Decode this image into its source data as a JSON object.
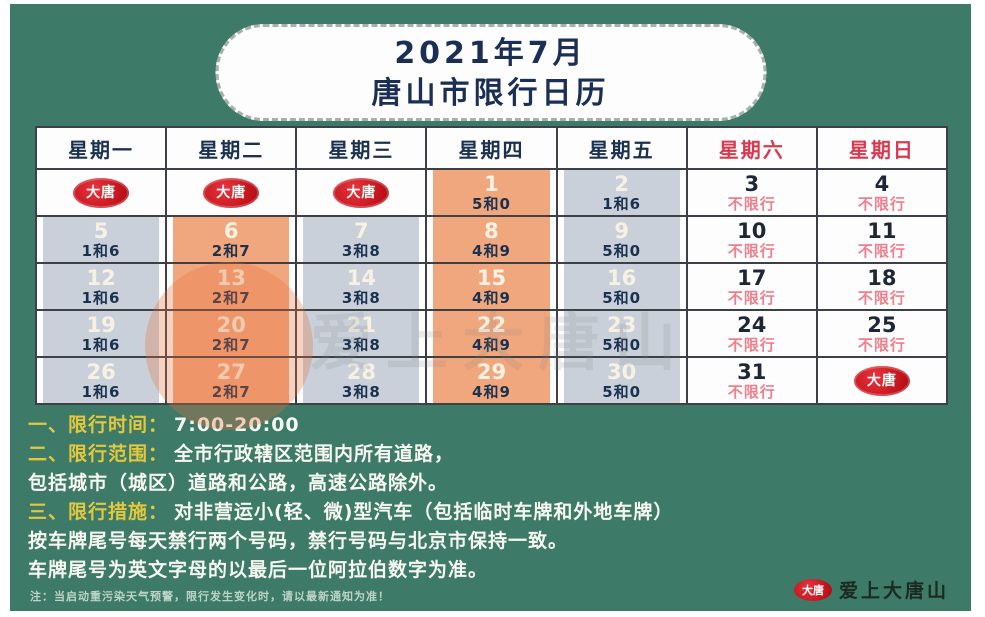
{
  "title": {
    "line1": "2021年7月",
    "line2": "唐山市限行日历"
  },
  "calendar": {
    "headers": [
      {
        "label": "星期一",
        "weekend": false
      },
      {
        "label": "星期二",
        "weekend": false
      },
      {
        "label": "星期三",
        "weekend": false
      },
      {
        "label": "星期四",
        "weekend": false
      },
      {
        "label": "星期五",
        "weekend": false
      },
      {
        "label": "星期六",
        "weekend": true
      },
      {
        "label": "星期日",
        "weekend": true
      }
    ],
    "logo_badge_text": "大唐",
    "rows": [
      [
        {
          "type": "logo",
          "bg": "white"
        },
        {
          "type": "logo",
          "bg": "white"
        },
        {
          "type": "logo",
          "bg": "white"
        },
        {
          "type": "date",
          "date": "1",
          "rule": "5和0",
          "bg": "orange",
          "weekend": false
        },
        {
          "type": "date",
          "date": "2",
          "rule": "1和6",
          "bg": "gray",
          "weekend": false
        },
        {
          "type": "date",
          "date": "3",
          "rule": "不限行",
          "bg": "white",
          "weekend": true
        },
        {
          "type": "date",
          "date": "4",
          "rule": "不限行",
          "bg": "white",
          "weekend": true
        }
      ],
      [
        {
          "type": "date",
          "date": "5",
          "rule": "1和6",
          "bg": "gray",
          "weekend": false
        },
        {
          "type": "date",
          "date": "6",
          "rule": "2和7",
          "bg": "orange",
          "weekend": false
        },
        {
          "type": "date",
          "date": "7",
          "rule": "3和8",
          "bg": "gray",
          "weekend": false
        },
        {
          "type": "date",
          "date": "8",
          "rule": "4和9",
          "bg": "orange",
          "weekend": false
        },
        {
          "type": "date",
          "date": "9",
          "rule": "5和0",
          "bg": "gray",
          "weekend": false
        },
        {
          "type": "date",
          "date": "10",
          "rule": "不限行",
          "bg": "white",
          "weekend": true
        },
        {
          "type": "date",
          "date": "11",
          "rule": "不限行",
          "bg": "white",
          "weekend": true
        }
      ],
      [
        {
          "type": "date",
          "date": "12",
          "rule": "1和6",
          "bg": "gray",
          "weekend": false
        },
        {
          "type": "date",
          "date": "13",
          "rule": "2和7",
          "bg": "orange",
          "weekend": false
        },
        {
          "type": "date",
          "date": "14",
          "rule": "3和8",
          "bg": "gray",
          "weekend": false
        },
        {
          "type": "date",
          "date": "15",
          "rule": "4和9",
          "bg": "orange",
          "weekend": false
        },
        {
          "type": "date",
          "date": "16",
          "rule": "5和0",
          "bg": "gray",
          "weekend": false
        },
        {
          "type": "date",
          "date": "17",
          "rule": "不限行",
          "bg": "white",
          "weekend": true
        },
        {
          "type": "date",
          "date": "18",
          "rule": "不限行",
          "bg": "white",
          "weekend": true
        }
      ],
      [
        {
          "type": "date",
          "date": "19",
          "rule": "1和6",
          "bg": "gray",
          "weekend": false
        },
        {
          "type": "date",
          "date": "20",
          "rule": "2和7",
          "bg": "orange",
          "weekend": false
        },
        {
          "type": "date",
          "date": "21",
          "rule": "3和8",
          "bg": "gray",
          "weekend": false
        },
        {
          "type": "date",
          "date": "22",
          "rule": "4和9",
          "bg": "orange",
          "weekend": false
        },
        {
          "type": "date",
          "date": "23",
          "rule": "5和0",
          "bg": "gray",
          "weekend": false
        },
        {
          "type": "date",
          "date": "24",
          "rule": "不限行",
          "bg": "white",
          "weekend": true
        },
        {
          "type": "date",
          "date": "25",
          "rule": "不限行",
          "bg": "white",
          "weekend": true
        }
      ],
      [
        {
          "type": "date",
          "date": "26",
          "rule": "1和6",
          "bg": "gray",
          "weekend": false
        },
        {
          "type": "date",
          "date": "27",
          "rule": "2和7",
          "bg": "orange",
          "weekend": false
        },
        {
          "type": "date",
          "date": "28",
          "rule": "3和8",
          "bg": "gray",
          "weekend": false
        },
        {
          "type": "date",
          "date": "29",
          "rule": "4和9",
          "bg": "orange",
          "weekend": false
        },
        {
          "type": "date",
          "date": "30",
          "rule": "5和0",
          "bg": "gray",
          "weekend": false
        },
        {
          "type": "date",
          "date": "31",
          "rule": "不限行",
          "bg": "white",
          "weekend": true
        },
        {
          "type": "logo",
          "bg": "white"
        }
      ]
    ]
  },
  "rules_section": {
    "lines": [
      {
        "label": "一、限行时间：",
        "text": "7:00-20:00"
      },
      {
        "label": "二、限行范围：",
        "text": "全市行政辖区范围内所有道路，"
      },
      {
        "label": "",
        "text": "包括城市（城区）道路和公路，高速公路除外。"
      },
      {
        "label": "三、限行措施：",
        "text": "对非营运小(轻、微)型汽车（包括临时车牌和外地车牌）"
      },
      {
        "label": "",
        "text": "按车牌尾号每天禁行两个号码，禁行号码与北京市保持一致。"
      },
      {
        "label": "",
        "text": "车牌尾号为英文字母的以最后一位阿拉伯数字为准。"
      }
    ],
    "footnote": "注：当启动重污染天气预警，限行发生变化时，请以最新通知为准！"
  },
  "watermark": {
    "text": "爱上大唐山"
  },
  "footer": {
    "badge_text": "大唐",
    "brand_text": "爱上大唐山"
  },
  "colors": {
    "background_green": "#3d7a67",
    "cell_orange": "#f1a77d",
    "cell_gray": "#c9d0d9",
    "weekday_text_navy": "#1b3150",
    "weekend_header_red": "#d93a50",
    "no_restriction_pink": "#ee7f8e",
    "badge_red": "#c0121b",
    "rule_label_yellow": "#e3c83d"
  }
}
